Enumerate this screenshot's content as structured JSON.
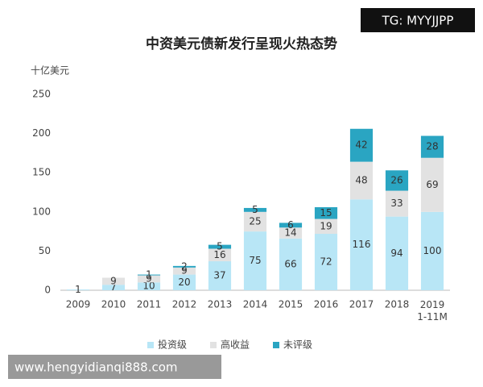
{
  "chart_data": {
    "type": "stacked_bar",
    "title": "中资美元债新发行呈现火热态势",
    "y_label": "十亿美元",
    "categories": [
      "2009",
      "2010",
      "2011",
      "2012",
      "2013",
      "2014",
      "2015",
      "2016",
      "2017",
      "2018",
      "2019\n1-11M"
    ],
    "series": [
      {
        "name": "投资级",
        "color": "#b8e6f6",
        "values": [
          1,
          7,
          10,
          20,
          37,
          75,
          66,
          72,
          116,
          94,
          100
        ]
      },
      {
        "name": "高收益",
        "color": "#e2e2e2",
        "values": [
          null,
          9,
          9,
          9,
          16,
          25,
          14,
          19,
          48,
          33,
          69
        ]
      },
      {
        "name": "未评级",
        "color": "#2aa5c2",
        "values": [
          null,
          null,
          1,
          2,
          5,
          5,
          6,
          15,
          42,
          26,
          28
        ]
      }
    ],
    "ylim": [
      0,
      250
    ],
    "yticks": [
      0,
      50,
      100,
      150,
      200,
      250
    ],
    "grid": false,
    "legend": "bottom"
  },
  "watermarks": {
    "top_right": "TG: MYYJJPP",
    "bottom_left": "www.hengyidianqi888.com"
  }
}
